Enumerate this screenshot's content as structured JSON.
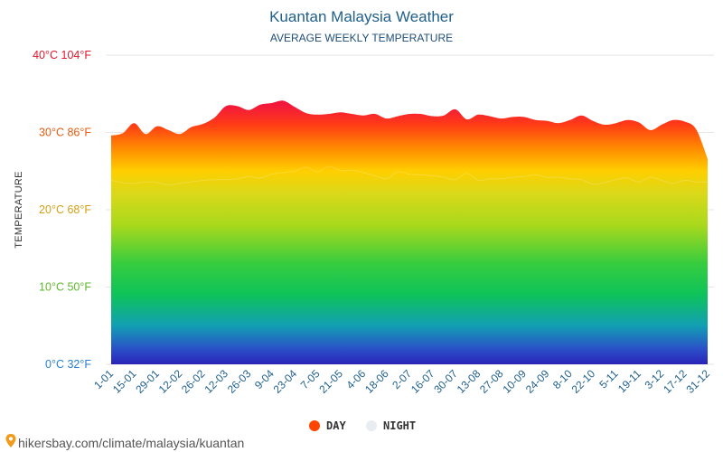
{
  "chart_data": {
    "type": "area",
    "title": "Kuantan Malaysia Weather",
    "subtitle": "AVERAGE WEEKLY TEMPERATURE",
    "ylabel": "TEMPERATURE",
    "ylim": [
      0,
      40
    ],
    "grid": true,
    "legend_position": "bottom",
    "y_ticks": [
      {
        "value": 0,
        "label": "0°C 32°F",
        "color": "#2a7fd0"
      },
      {
        "value": 10,
        "label": "10°C 50°F",
        "color": "#5fb82c"
      },
      {
        "value": 20,
        "label": "20°C 68°F",
        "color": "#d4a017"
      },
      {
        "value": 30,
        "label": "30°C 86°F",
        "color": "#e45d12"
      },
      {
        "value": 40,
        "label": "40°C 104°F",
        "color": "#e0182d"
      }
    ],
    "x_tick_labels": [
      "1-01",
      "15-01",
      "29-01",
      "12-02",
      "26-02",
      "12-03",
      "26-03",
      "9-04",
      "23-04",
      "7-05",
      "21-05",
      "4-06",
      "18-06",
      "2-07",
      "16-07",
      "30-07",
      "13-08",
      "27-08",
      "10-09",
      "24-09",
      "8-10",
      "22-10",
      "5-11",
      "19-11",
      "3-12",
      "17-12",
      "31-12"
    ],
    "series": [
      {
        "name": "DAY",
        "color": "#ff4500",
        "values": [
          29.6,
          29.9,
          31.2,
          29.8,
          30.8,
          30.3,
          29.8,
          30.7,
          31.1,
          31.9,
          33.4,
          33.4,
          32.9,
          33.6,
          33.8,
          34.1,
          33.3,
          32.5,
          32.3,
          32.4,
          32.6,
          32.4,
          32.2,
          32.4,
          31.8,
          32.1,
          32.4,
          32.4,
          32.1,
          32.2,
          33.0,
          31.7,
          32.3,
          32.1,
          31.8,
          32.0,
          32.0,
          31.6,
          31.5,
          31.2,
          31.6,
          32.2,
          31.5,
          31.0,
          31.2,
          31.6,
          31.3,
          30.3,
          31.0,
          31.6,
          31.4,
          30.4,
          26.6
        ]
      },
      {
        "name": "NIGHT",
        "color": "#e8edf2",
        "values": [
          23.8,
          23.5,
          23.4,
          23.6,
          23.5,
          23.2,
          23.4,
          23.6,
          23.8,
          23.9,
          23.9,
          24.0,
          24.3,
          24.1,
          24.6,
          24.8,
          25.0,
          25.5,
          24.9,
          25.6,
          25.1,
          25.1,
          24.8,
          24.4,
          24.0,
          24.9,
          24.6,
          24.5,
          24.4,
          24.2,
          23.9,
          24.7,
          23.8,
          24.0,
          24.0,
          24.2,
          24.3,
          24.5,
          24.2,
          24.2,
          24.0,
          23.9,
          23.3,
          23.5,
          23.9,
          24.1,
          23.6,
          24.2,
          23.8,
          23.4,
          23.8,
          23.6,
          23.6
        ]
      }
    ]
  },
  "source_text": "hikersbay.com/climate/malaysia/kuantan"
}
